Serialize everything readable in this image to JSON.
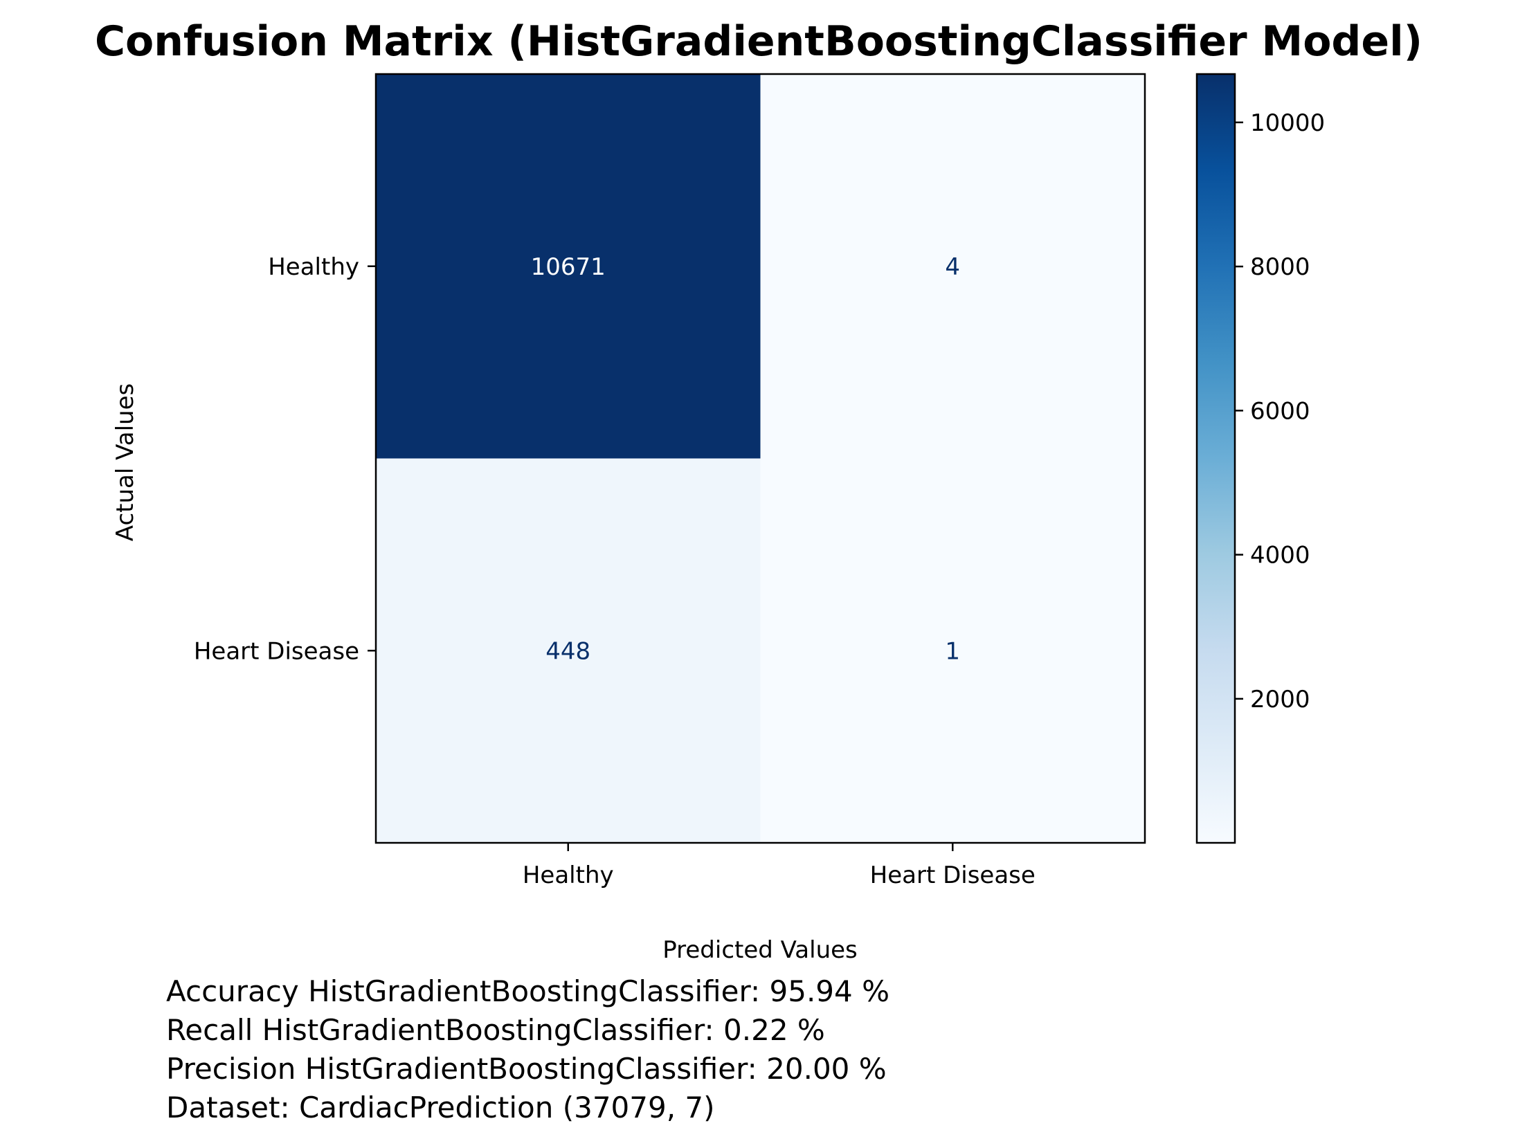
{
  "chart_data": {
    "type": "heatmap",
    "title": "Confusion Matrix (HistGradientBoostingClassifier Model)",
    "xlabel": "Predicted Values",
    "ylabel": "Actual Values",
    "x_categories": [
      "Healthy",
      "Heart Disease"
    ],
    "y_categories": [
      "Healthy",
      "Heart Disease"
    ],
    "matrix": [
      [
        10671,
        4
      ],
      [
        448,
        1
      ]
    ],
    "colormap": "Blues",
    "color_range": [
      1,
      10671
    ],
    "colorbar_ticks": [
      2000,
      4000,
      6000,
      8000,
      10000
    ],
    "colorbar_tick_labels": [
      "2000",
      "4000",
      "6000",
      "8000",
      "10000"
    ],
    "grid": false,
    "legend": "colorbar-right"
  },
  "metrics": [
    "Accuracy HistGradientBoostingClassifier: 95.94 %",
    "Recall HistGradientBoostingClassifier: 0.22 %",
    "Precision HistGradientBoostingClassifier: 20.00 %",
    "Dataset: CardiacPrediction (37079, 7)"
  ],
  "colors": {
    "text_dark": "#000000",
    "cell_text_light": "#ffffff",
    "cell_text_dark": "#08306b",
    "cmap_low": "#f7fbff",
    "cmap_high": "#08306b"
  }
}
